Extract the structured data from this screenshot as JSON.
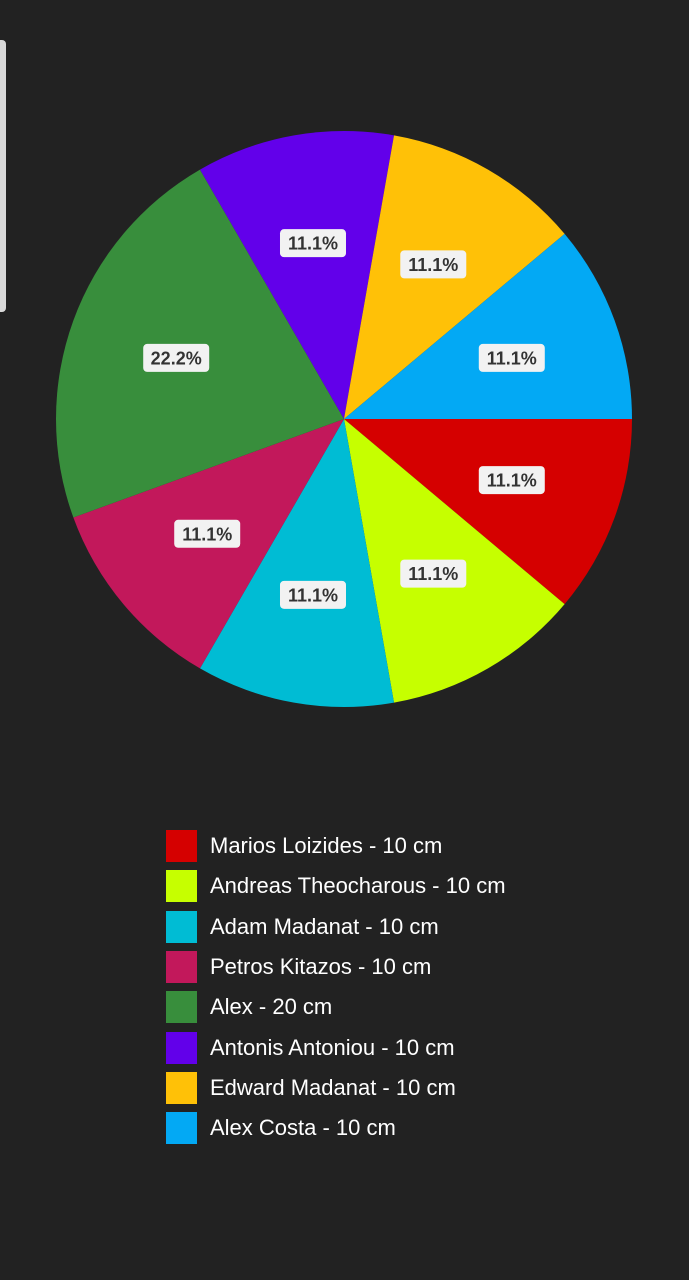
{
  "chart_data": {
    "type": "pie",
    "title": "",
    "slices": [
      {
        "label": "Marios Loizides - 10 cm",
        "value": 10,
        "percent_label": "11.1%",
        "color": "#d50000"
      },
      {
        "label": "Andreas Theocharous - 10 cm",
        "value": 10,
        "percent_label": "11.1%",
        "color": "#c6ff00"
      },
      {
        "label": "Adam Madanat - 10 cm",
        "value": 10,
        "percent_label": "11.1%",
        "color": "#00bcd4"
      },
      {
        "label": "Petros Kitazos - 10 cm",
        "value": 10,
        "percent_label": "11.1%",
        "color": "#c2185b"
      },
      {
        "label": "Alex - 20 cm",
        "value": 20,
        "percent_label": "22.2%",
        "color": "#388e3c"
      },
      {
        "label": "Antonis Antoniou - 10 cm",
        "value": 10,
        "percent_label": "11.1%",
        "color": "#6200ea"
      },
      {
        "label": "Edward Madanat - 10 cm",
        "value": 10,
        "percent_label": "11.1%",
        "color": "#ffc107"
      },
      {
        "label": "Alex Costa - 10 cm",
        "value": 10,
        "percent_label": "11.1%",
        "color": "#03a9f4"
      }
    ],
    "legend_position": "bottom"
  }
}
